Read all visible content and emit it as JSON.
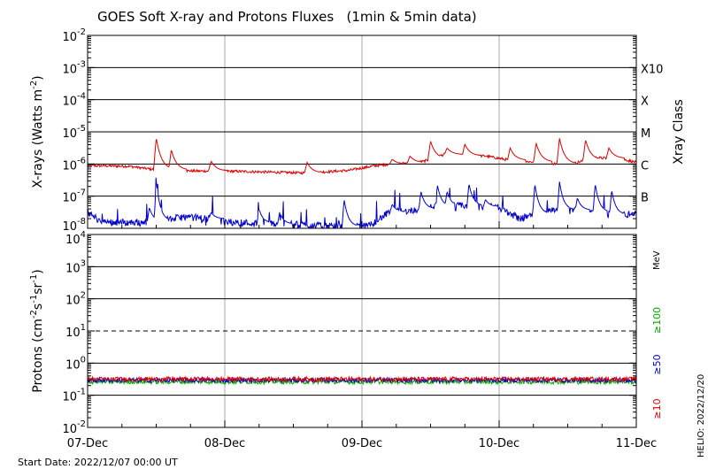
{
  "title": "GOES Soft X-ray and Protons Fluxes   (1min & 5min data)",
  "footer": {
    "start_date": "Start Date: 2022/12/07 00:00 UT",
    "stamp": "HELIO: 2022/12/20"
  },
  "chart_data": [
    {
      "type": "line",
      "panel": "xray",
      "ylabel_pre": "X-rays (Watts m",
      "ylabel_sup": "-2",
      "ylabel_post": ")",
      "right_axis_label": "Xray Class",
      "yscale": "log",
      "ylim_exp": [
        -8,
        -2
      ],
      "ytick_base": "10",
      "ytick_exps": [
        "-8",
        "-7",
        "-6",
        "-5",
        "-4",
        "-3",
        "-2"
      ],
      "grid_exps": [
        -7,
        -6,
        -5,
        -4,
        -3
      ],
      "class_labels": [
        {
          "label": "B",
          "exp": -7
        },
        {
          "label": "C",
          "exp": -6
        },
        {
          "label": "M",
          "exp": -5
        },
        {
          "label": "X",
          "exp": -4
        },
        {
          "label": "X10",
          "exp": -3
        }
      ],
      "series": [
        {
          "color": "#dd0000",
          "baseline_exp": [
            [
              0,
              -6.05
            ],
            [
              0.3,
              -6.07
            ],
            [
              0.5,
              -6.18
            ],
            [
              0.8,
              -6.22
            ],
            [
              1.0,
              -6.22
            ],
            [
              1.3,
              -6.25
            ],
            [
              1.6,
              -6.28
            ],
            [
              1.9,
              -6.2
            ],
            [
              2.1,
              -6.05
            ],
            [
              2.3,
              -5.98
            ],
            [
              2.45,
              -5.92
            ],
            [
              2.6,
              -5.7
            ],
            [
              2.75,
              -5.75
            ],
            [
              2.9,
              -5.75
            ],
            [
              3.1,
              -5.9
            ],
            [
              3.3,
              -5.95
            ],
            [
              3.5,
              -6.03
            ],
            [
              3.7,
              -5.8
            ],
            [
              3.9,
              -5.85
            ],
            [
              4.0,
              -5.95
            ]
          ],
          "spikes": [
            [
              0.5,
              -5.17
            ],
            [
              0.61,
              -5.55
            ],
            [
              0.9,
              -5.9
            ],
            [
              1.6,
              -5.95
            ],
            [
              2.22,
              -5.85
            ],
            [
              2.35,
              -5.75
            ],
            [
              2.5,
              -5.28
            ],
            [
              2.62,
              -5.5
            ],
            [
              2.75,
              -5.38
            ],
            [
              3.08,
              -5.5
            ],
            [
              3.27,
              -5.35
            ],
            [
              3.44,
              -5.2
            ],
            [
              3.63,
              -5.25
            ],
            [
              3.8,
              -5.5
            ]
          ]
        },
        {
          "color": "#0000cc",
          "baseline_exp": [
            [
              0,
              -7.5
            ],
            [
              0.1,
              -7.8
            ],
            [
              0.3,
              -7.82
            ],
            [
              0.5,
              -7.78
            ],
            [
              0.7,
              -7.65
            ],
            [
              0.9,
              -7.7
            ],
            [
              1.0,
              -7.8
            ],
            [
              1.3,
              -7.85
            ],
            [
              1.6,
              -7.9
            ],
            [
              1.8,
              -7.95
            ],
            [
              2.05,
              -7.93
            ],
            [
              2.2,
              -7.5
            ],
            [
              2.35,
              -7.45
            ],
            [
              2.5,
              -7.35
            ],
            [
              2.65,
              -7.3
            ],
            [
              2.8,
              -7.3
            ],
            [
              3.0,
              -7.35
            ],
            [
              3.15,
              -7.7
            ],
            [
              3.3,
              -7.5
            ],
            [
              3.5,
              -7.4
            ],
            [
              3.7,
              -7.5
            ],
            [
              3.85,
              -7.6
            ],
            [
              4.0,
              -7.55
            ]
          ],
          "spikes": [
            [
              0.5,
              -6.5
            ],
            [
              0.45,
              -7.35
            ],
            [
              0.9,
              -7.5
            ],
            [
              1.25,
              -7.4
            ],
            [
              1.4,
              -7.5
            ],
            [
              1.87,
              -7.1
            ],
            [
              2.22,
              -7.25
            ],
            [
              2.43,
              -6.85
            ],
            [
              2.55,
              -6.65
            ],
            [
              2.62,
              -6.85
            ],
            [
              2.78,
              -6.6
            ],
            [
              2.9,
              -7.1
            ],
            [
              3.26,
              -6.6
            ],
            [
              3.44,
              -6.55
            ],
            [
              3.57,
              -7.05
            ],
            [
              3.7,
              -6.6
            ],
            [
              3.82,
              -6.8
            ]
          ]
        }
      ]
    },
    {
      "type": "line",
      "panel": "protons",
      "ylabel_pre": "Protons (cm",
      "ylabel_parts": [
        "-2",
        "s",
        "-1",
        "sr",
        "-1",
        ")"
      ],
      "unit": "MeV",
      "yscale": "log",
      "ylim_exp": [
        -2,
        4
      ],
      "ytick_labels": [
        {
          "base": "10",
          "exp": "-2"
        },
        {
          "base": "10",
          "exp": "-1"
        },
        {
          "base": "10",
          "exp": "0"
        },
        {
          "base": "10",
          "exp": "1"
        },
        {
          "base": "10",
          "exp": "2"
        },
        {
          "base": "10",
          "exp": "3"
        },
        {
          "base": "10",
          "exp": "4"
        }
      ],
      "grid_exps": [
        -1,
        0,
        2,
        3
      ],
      "dashed_exps": [
        1
      ],
      "series": [
        {
          "name": "≥100",
          "color": "#00aa00",
          "level_exp": -0.58
        },
        {
          "name": "≥50",
          "color": "#0000cc",
          "level_exp": -0.53
        },
        {
          "name": "≥10",
          "color": "#dd0000",
          "level_exp": -0.5
        }
      ]
    }
  ],
  "x_axis": {
    "range_days": [
      0,
      4
    ],
    "ticks": [
      "07-Dec",
      "08-Dec",
      "09-Dec",
      "10-Dec",
      "11-Dec"
    ]
  }
}
